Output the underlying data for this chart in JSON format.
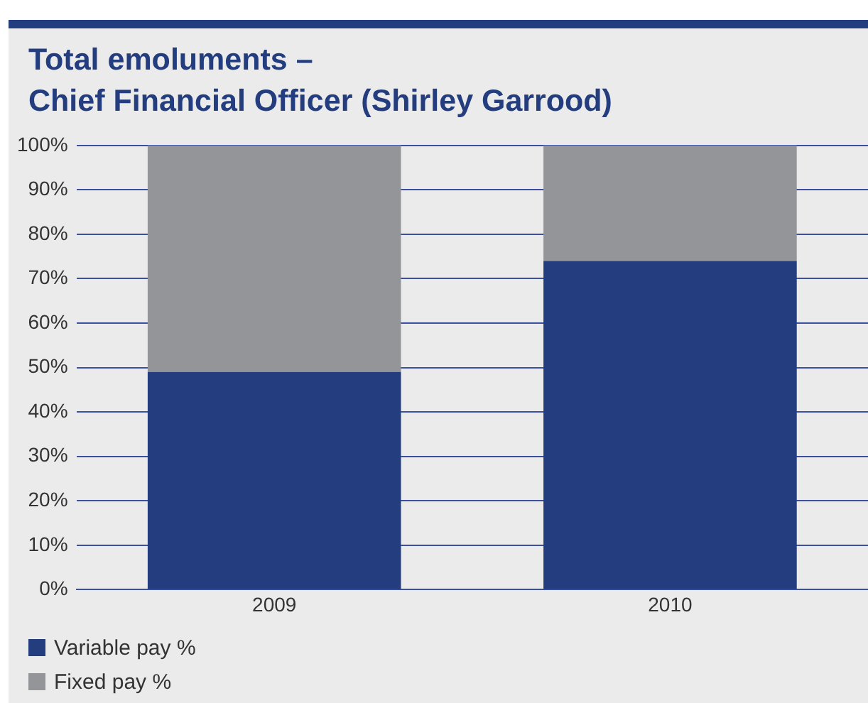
{
  "chart_data": {
    "type": "bar",
    "title": "Total emoluments –\nChief Financial Officer (Shirley Garrood)",
    "categories": [
      "2009",
      "2010"
    ],
    "stacked": true,
    "series": [
      {
        "name": "Variable pay %",
        "color": "#233d7f",
        "values": [
          49,
          74
        ]
      },
      {
        "name": "Fixed pay %",
        "color": "#939598",
        "values": [
          51,
          26
        ]
      }
    ],
    "ylim": [
      0,
      100
    ],
    "yticks": [
      {
        "value": 0,
        "label": "0%"
      },
      {
        "value": 10,
        "label": "10%"
      },
      {
        "value": 20,
        "label": "20%"
      },
      {
        "value": 30,
        "label": "30%"
      },
      {
        "value": 40,
        "label": "40%"
      },
      {
        "value": 50,
        "label": "50%"
      },
      {
        "value": 60,
        "label": "60%"
      },
      {
        "value": 70,
        "label": "70%"
      },
      {
        "value": 80,
        "label": "80%"
      },
      {
        "value": 90,
        "label": "90%"
      },
      {
        "value": 100,
        "label": "100%"
      }
    ],
    "grid": "y",
    "legend": "bottom left"
  }
}
